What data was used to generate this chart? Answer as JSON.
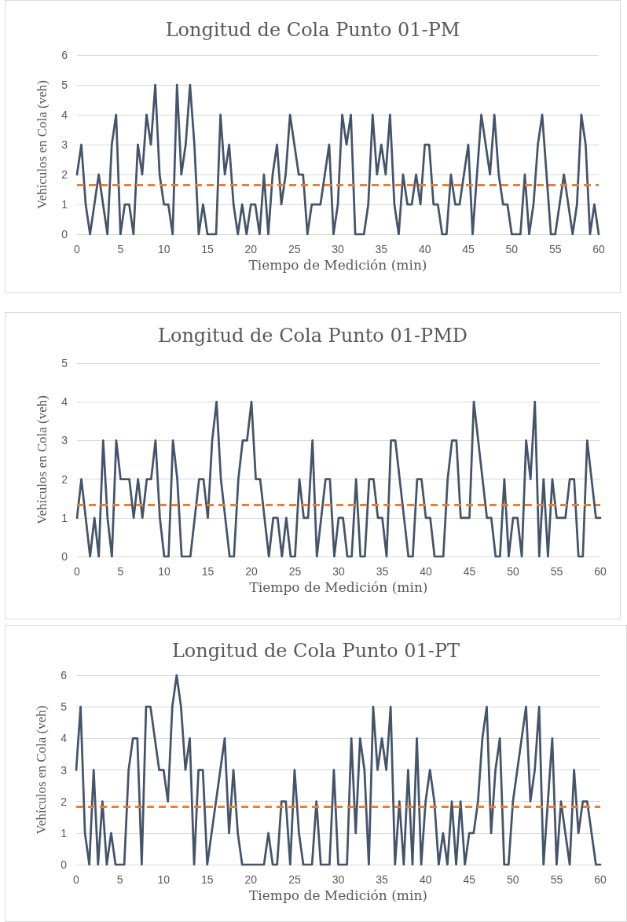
{
  "chart_data": [
    {
      "type": "line",
      "title": "Longitud de Cola Punto 01-PM",
      "xlabel": "Tiempo de Medición (min)",
      "ylabel": "Vehículos en Cola (veh)",
      "x": [
        0,
        0.5,
        1,
        1.5,
        2,
        2.5,
        3,
        3.5,
        4,
        4.5,
        5,
        5.5,
        6,
        6.5,
        7,
        7.5,
        8,
        8.5,
        9,
        9.5,
        10,
        10.5,
        11,
        11.5,
        12,
        12.5,
        13,
        13.5,
        14,
        14.5,
        15,
        15.5,
        16,
        16.5,
        17,
        17.5,
        18,
        18.5,
        19,
        19.5,
        20,
        20.5,
        21,
        21.5,
        22,
        22.5,
        23,
        23.5,
        24,
        24.5,
        25,
        25.5,
        26,
        26.5,
        27,
        27.5,
        28,
        28.5,
        29,
        29.5,
        30,
        30.5,
        31,
        31.5,
        32,
        32.5,
        33,
        33.5,
        34,
        34.5,
        35,
        35.5,
        36,
        36.5,
        37,
        37.5,
        38,
        38.5,
        39,
        39.5,
        40,
        40.5,
        41,
        41.5,
        42,
        42.5,
        43,
        43.5,
        44,
        44.5,
        45,
        45.5,
        46,
        46.5,
        47,
        47.5,
        48,
        48.5,
        49,
        49.5,
        50,
        50.5,
        51,
        51.5,
        52,
        52.5,
        53,
        53.5,
        54,
        54.5,
        55,
        55.5,
        56,
        56.5,
        57,
        57.5,
        58,
        58.5,
        59,
        59.5,
        60
      ],
      "series": [
        {
          "color": "#44546a",
          "values": [
            2,
            3,
            1,
            0,
            1,
            2,
            1,
            0,
            3,
            4,
            0,
            1,
            1,
            0,
            3,
            2,
            4,
            3,
            5,
            2,
            1,
            1,
            0,
            5,
            2,
            3,
            5,
            3,
            0,
            1,
            0,
            0,
            0,
            4,
            2,
            3,
            1,
            0,
            1,
            0,
            1,
            1,
            0,
            2,
            0,
            2,
            3,
            1,
            2,
            4,
            3,
            2,
            2,
            0,
            1,
            1,
            1,
            2,
            3,
            0,
            1,
            4,
            3,
            4,
            0,
            0,
            0,
            1,
            4,
            2,
            3,
            2,
            4,
            1,
            0,
            2,
            1,
            1,
            2,
            1,
            3,
            3,
            1,
            1,
            0,
            0,
            2,
            1,
            1,
            2,
            3,
            0,
            2,
            4,
            3,
            2,
            4,
            2,
            1,
            1,
            0,
            0,
            0,
            2,
            0,
            1,
            3,
            4,
            2,
            0,
            0,
            1,
            2,
            1,
            0,
            1,
            4,
            3,
            0,
            1,
            0
          ]
        }
      ],
      "xlim": [
        0,
        60
      ],
      "xticks": [
        0,
        5,
        10,
        15,
        20,
        25,
        30,
        35,
        40,
        45,
        50,
        55,
        60
      ],
      "ylim": [
        0,
        6
      ],
      "yticks": [
        0,
        1,
        2,
        3,
        4,
        5,
        6
      ],
      "ref_lines": [
        {
          "axis": "y",
          "value": 1.64,
          "color": "#ed7d31",
          "line_style": "dashed"
        }
      ],
      "grid": "y",
      "marker": "none",
      "line_style": "solid"
    },
    {
      "type": "line",
      "title": "Longitud de Cola Punto 01-PMD",
      "xlabel": "Tiempo de Medición (min)",
      "ylabel": "Vehículos en Cola (veh)",
      "x": [
        0,
        0.5,
        1,
        1.5,
        2,
        2.5,
        3,
        3.5,
        4,
        4.5,
        5,
        5.5,
        6,
        6.5,
        7,
        7.5,
        8,
        8.5,
        9,
        9.5,
        10,
        10.5,
        11,
        11.5,
        12,
        12.5,
        13,
        13.5,
        14,
        14.5,
        15,
        15.5,
        16,
        16.5,
        17,
        17.5,
        18,
        18.5,
        19,
        19.5,
        20,
        20.5,
        21,
        21.5,
        22,
        22.5,
        23,
        23.5,
        24,
        24.5,
        25,
        25.5,
        26,
        26.5,
        27,
        27.5,
        28,
        28.5,
        29,
        29.5,
        30,
        30.5,
        31,
        31.5,
        32,
        32.5,
        33,
        33.5,
        34,
        34.5,
        35,
        35.5,
        36,
        36.5,
        37,
        37.5,
        38,
        38.5,
        39,
        39.5,
        40,
        40.5,
        41,
        41.5,
        42,
        42.5,
        43,
        43.5,
        44,
        44.5,
        45,
        45.5,
        46,
        46.5,
        47,
        47.5,
        48,
        48.5,
        49,
        49.5,
        50,
        50.5,
        51,
        51.5,
        52,
        52.5,
        53,
        53.5,
        54,
        54.5,
        55,
        55.5,
        56,
        56.5,
        57,
        57.5,
        58,
        58.5,
        59,
        59.5,
        60
      ],
      "series": [
        {
          "color": "#44546a",
          "values": [
            1,
            2,
            1,
            0,
            1,
            0,
            3,
            1,
            0,
            3,
            2,
            2,
            2,
            1,
            2,
            1,
            2,
            2,
            3,
            1,
            0,
            0,
            3,
            2,
            0,
            0,
            0,
            1,
            2,
            2,
            1,
            3,
            4,
            2,
            1,
            0,
            0,
            2,
            3,
            3,
            4,
            2,
            2,
            1,
            0,
            1,
            1,
            0,
            1,
            0,
            0,
            2,
            1,
            1,
            3,
            0,
            1,
            2,
            2,
            0,
            1,
            1,
            0,
            0,
            2,
            0,
            0,
            2,
            2,
            1,
            1,
            0,
            3,
            3,
            2,
            1,
            0,
            0,
            2,
            2,
            1,
            1,
            0,
            0,
            0,
            2,
            3,
            3,
            1,
            1,
            1,
            4,
            3,
            2,
            1,
            1,
            0,
            0,
            2,
            0,
            1,
            1,
            0,
            3,
            2,
            4,
            0,
            2,
            0,
            2,
            1,
            1,
            1,
            2,
            2,
            0,
            0,
            3,
            2,
            1,
            1
          ]
        }
      ],
      "xlim": [
        0,
        60
      ],
      "xticks": [
        0,
        5,
        10,
        15,
        20,
        25,
        30,
        35,
        40,
        45,
        50,
        55,
        60
      ],
      "ylim": [
        0,
        5
      ],
      "yticks": [
        0,
        1,
        2,
        3,
        4,
        5
      ],
      "ref_lines": [
        {
          "axis": "y",
          "value": 1.33,
          "color": "#ed7d31",
          "line_style": "dashed"
        }
      ],
      "grid": "y",
      "marker": "none",
      "line_style": "solid"
    },
    {
      "type": "line",
      "title": "Longitud de Cola Punto 01-PT",
      "xlabel": "Tiempo de Medición (min)",
      "ylabel": "Vehículos en Cola (veh)",
      "x": [
        0,
        0.5,
        1,
        1.5,
        2,
        2.5,
        3,
        3.5,
        4,
        4.5,
        5,
        5.5,
        6,
        6.5,
        7,
        7.5,
        8,
        8.5,
        9,
        9.5,
        10,
        10.5,
        11,
        11.5,
        12,
        12.5,
        13,
        13.5,
        14,
        14.5,
        15,
        15.5,
        16,
        16.5,
        17,
        17.5,
        18,
        18.5,
        19,
        19.5,
        20,
        20.5,
        21,
        21.5,
        22,
        22.5,
        23,
        23.5,
        24,
        24.5,
        25,
        25.5,
        26,
        26.5,
        27,
        27.5,
        28,
        28.5,
        29,
        29.5,
        30,
        30.5,
        31,
        31.5,
        32,
        32.5,
        33,
        33.5,
        34,
        34.5,
        35,
        35.5,
        36,
        36.5,
        37,
        37.5,
        38,
        38.5,
        39,
        39.5,
        40,
        40.5,
        41,
        41.5,
        42,
        42.5,
        43,
        43.5,
        44,
        44.5,
        45,
        45.5,
        46,
        46.5,
        47,
        47.5,
        48,
        48.5,
        49,
        49.5,
        50,
        50.5,
        51,
        51.5,
        52,
        52.5,
        53,
        53.5,
        54,
        54.5,
        55,
        55.5,
        56,
        56.5,
        57,
        57.5,
        58,
        58.5,
        59,
        59.5,
        60
      ],
      "series": [
        {
          "color": "#44546a",
          "values": [
            3,
            5,
            1,
            0,
            3,
            0,
            2,
            0,
            1,
            0,
            0,
            0,
            3,
            4,
            4,
            0,
            5,
            5,
            4,
            3,
            3,
            2,
            5,
            6,
            5,
            3,
            4,
            0,
            3,
            3,
            0,
            1,
            2,
            3,
            4,
            1,
            3,
            1,
            0,
            0,
            0,
            0,
            0,
            0,
            1,
            0,
            0,
            2,
            2,
            0,
            3,
            1,
            0,
            0,
            0,
            2,
            0,
            0,
            0,
            3,
            0,
            0,
            0,
            4,
            1,
            4,
            3,
            0,
            5,
            3,
            4,
            3,
            5,
            0,
            2,
            0,
            3,
            0,
            4,
            0,
            2,
            3,
            2,
            0,
            1,
            0,
            2,
            0,
            2,
            0,
            1,
            1,
            2,
            4,
            5,
            1,
            3,
            4,
            0,
            0,
            2,
            3,
            4,
            5,
            2,
            3,
            5,
            0,
            2,
            4,
            0,
            2,
            1,
            0,
            3,
            1,
            2,
            2,
            1,
            0,
            0
          ]
        }
      ],
      "xlim": [
        0,
        60
      ],
      "xticks": [
        0,
        5,
        10,
        15,
        20,
        25,
        30,
        35,
        40,
        45,
        50,
        55,
        60
      ],
      "ylim": [
        0,
        6
      ],
      "yticks": [
        0,
        1,
        2,
        3,
        4,
        5,
        6
      ],
      "ref_lines": [
        {
          "axis": "y",
          "value": 1.83,
          "color": "#ed7d31",
          "line_style": "dashed"
        }
      ],
      "grid": "y",
      "marker": "none",
      "line_style": "solid"
    }
  ]
}
